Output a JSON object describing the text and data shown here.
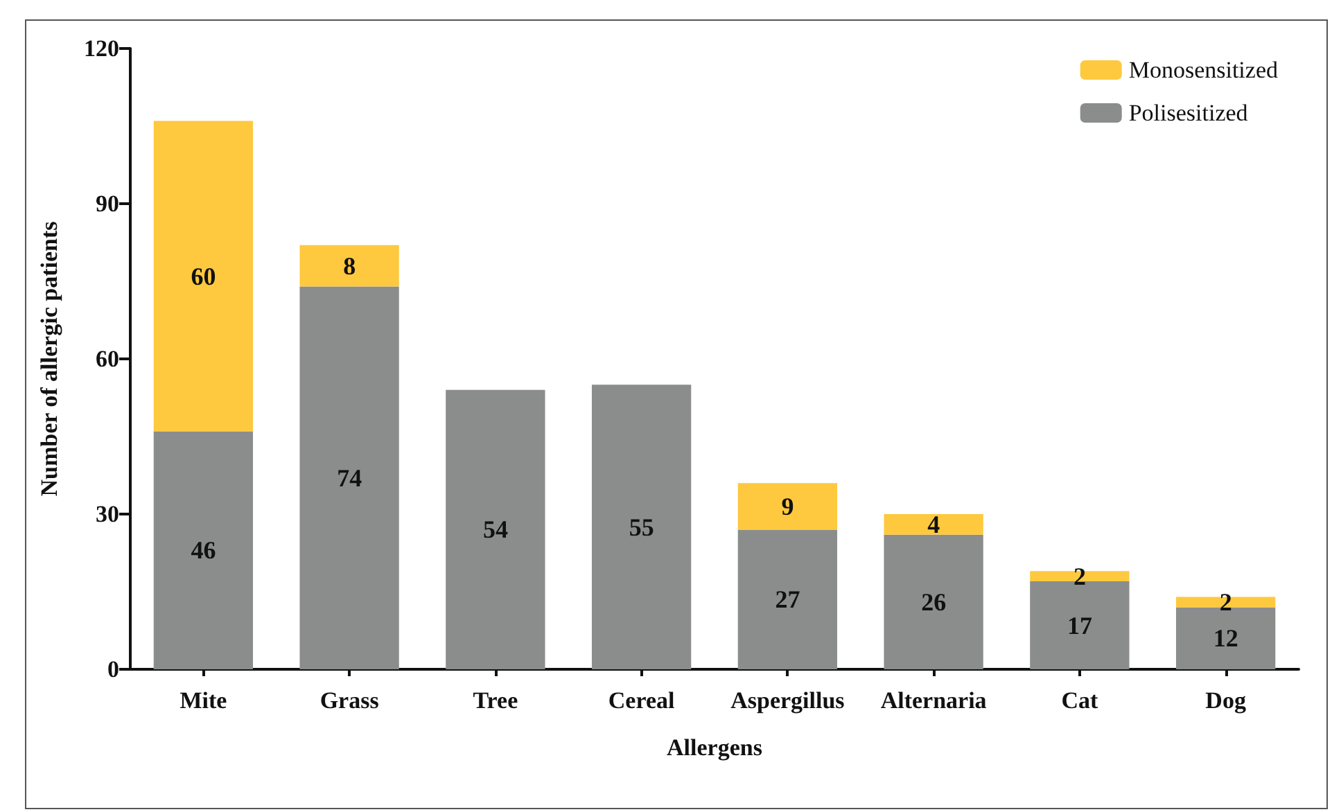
{
  "chart_data": {
    "type": "bar",
    "stacked": true,
    "xlabel": "Allergens",
    "ylabel": "Number of allergic patients",
    "categories": [
      "Mite",
      "Grass",
      "Tree",
      "Cereal",
      "Aspergillus",
      "Alternaria",
      "Cat",
      "Dog"
    ],
    "series": [
      {
        "name": "Polisesitized",
        "color": "#8b8d8d",
        "values": [
          46,
          74,
          54,
          55,
          27,
          26,
          17,
          12
        ]
      },
      {
        "name": "Monosensitized",
        "color": "#fec93f",
        "values": [
          60,
          8,
          null,
          null,
          9,
          4,
          2,
          2
        ]
      }
    ],
    "ylim": [
      0,
      120
    ],
    "yticks": [
      0,
      30,
      60,
      90,
      120
    ],
    "grid": false,
    "legend": "top right",
    "data_labels": true
  }
}
